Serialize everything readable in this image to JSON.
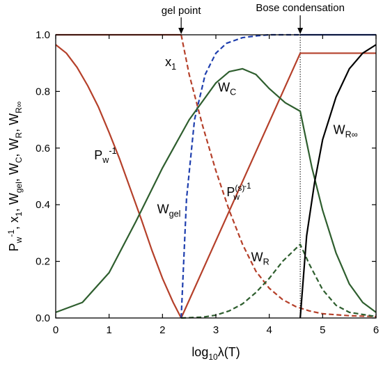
{
  "chart_data": {
    "type": "line",
    "xlabel": {
      "base": "log",
      "sub": "10",
      "rest": "λ(T)"
    },
    "ylabel": "P_w^-1, x_1, W_gel, W_C, W_R, W_R∞",
    "xlim": [
      0,
      6
    ],
    "ylim": [
      0,
      1.0
    ],
    "xticks": [
      "0",
      "1",
      "2",
      "3",
      "4",
      "5",
      "6"
    ],
    "yticks": [
      "0.0",
      "0.2",
      "0.4",
      "0.6",
      "0.8",
      "1.0"
    ],
    "grid": false,
    "gel_point_x": 2.35,
    "bose_x": 4.58,
    "series": [
      {
        "name": "P_w^-1",
        "color": "#b5402a",
        "dash": "solid",
        "x": [
          0,
          0.2,
          0.4,
          0.6,
          0.8,
          1.0,
          1.2,
          1.4,
          1.6,
          1.8,
          2.0,
          2.2,
          2.35
        ],
        "y": [
          0.965,
          0.935,
          0.885,
          0.82,
          0.745,
          0.655,
          0.56,
          0.455,
          0.35,
          0.24,
          0.14,
          0.055,
          0.0
        ]
      },
      {
        "name": "P(s)w^-1",
        "color": "#b5402a",
        "dash": "solid",
        "x": [
          2.35,
          4.58,
          6.0
        ],
        "y": [
          0.0,
          0.935,
          0.935
        ]
      },
      {
        "name": "x_1 (pre-gel)",
        "color": "#b5402a",
        "dash": "solid",
        "x": [
          0,
          2.35
        ],
        "y": [
          1.0,
          1.0
        ]
      },
      {
        "name": "x_1",
        "color": "#b5402a",
        "dash": "dashed",
        "x": [
          2.35,
          2.5,
          2.75,
          3.0,
          3.25,
          3.5,
          3.75,
          4.0,
          4.25,
          4.5,
          4.75,
          5.0,
          5.5,
          6.0
        ],
        "y": [
          1.0,
          0.86,
          0.68,
          0.52,
          0.38,
          0.26,
          0.165,
          0.105,
          0.065,
          0.04,
          0.025,
          0.015,
          0.008,
          0.005
        ]
      },
      {
        "name": "W_gel",
        "color": "#1f3fae",
        "dash": "dashed",
        "x": [
          2.35,
          2.45,
          2.6,
          2.8,
          3.0,
          3.2,
          3.5,
          3.8,
          4.0,
          4.58
        ],
        "y": [
          0.0,
          0.42,
          0.7,
          0.86,
          0.935,
          0.97,
          0.99,
          0.997,
          1.0,
          1.0
        ]
      },
      {
        "name": "W_gel (post-Bose)",
        "color": "#1f3fae",
        "dash": "solid",
        "x": [
          4.58,
          6.0
        ],
        "y": [
          1.0,
          1.0
        ]
      },
      {
        "name": "W_C",
        "color": "#2e5e2e",
        "dash": "solid",
        "x": [
          0,
          0.5,
          1.0,
          1.5,
          2.0,
          2.5,
          3.0,
          3.25,
          3.5,
          3.75,
          4.0,
          4.3,
          4.58,
          4.8,
          5.0,
          5.25,
          5.5,
          5.75,
          6.0
        ],
        "y": [
          0.02,
          0.055,
          0.16,
          0.34,
          0.53,
          0.7,
          0.83,
          0.87,
          0.88,
          0.86,
          0.81,
          0.76,
          0.73,
          0.53,
          0.38,
          0.23,
          0.12,
          0.055,
          0.02
        ]
      },
      {
        "name": "W_R",
        "color": "#2e5e2e",
        "dash": "dashed",
        "x": [
          2.35,
          2.75,
          3.0,
          3.25,
          3.5,
          3.75,
          4.0,
          4.25,
          4.58,
          4.75,
          5.0,
          5.25,
          5.5,
          6.0
        ],
        "y": [
          0.0,
          0.003,
          0.01,
          0.025,
          0.05,
          0.09,
          0.14,
          0.2,
          0.26,
          0.19,
          0.1,
          0.045,
          0.02,
          0.005
        ]
      },
      {
        "name": "W_R∞",
        "color": "#000000",
        "dash": "solid",
        "x": [
          4.58,
          4.7,
          4.85,
          5.0,
          5.25,
          5.5,
          5.75,
          6.0
        ],
        "y": [
          0.0,
          0.29,
          0.48,
          0.63,
          0.78,
          0.88,
          0.935,
          0.965
        ]
      }
    ],
    "annotations": {
      "gel_point": "gel point",
      "bose": "Bose condensation",
      "pw_main": "P",
      "pw_sub": "w",
      "pw_sup": "-1",
      "x1_main": "x",
      "x1_sub": "1",
      "wc_main": "W",
      "wc_sub": "C",
      "wgel_main": "W",
      "wgel_sub": "gel",
      "ps_main": "P",
      "ps_sup": "(s)",
      "ps_sub": "w",
      "ps_sup2": "-1",
      "wr_main": "W",
      "wr_sub": "R",
      "wrinf_main": "W",
      "wrinf_sub": "R∞"
    }
  }
}
